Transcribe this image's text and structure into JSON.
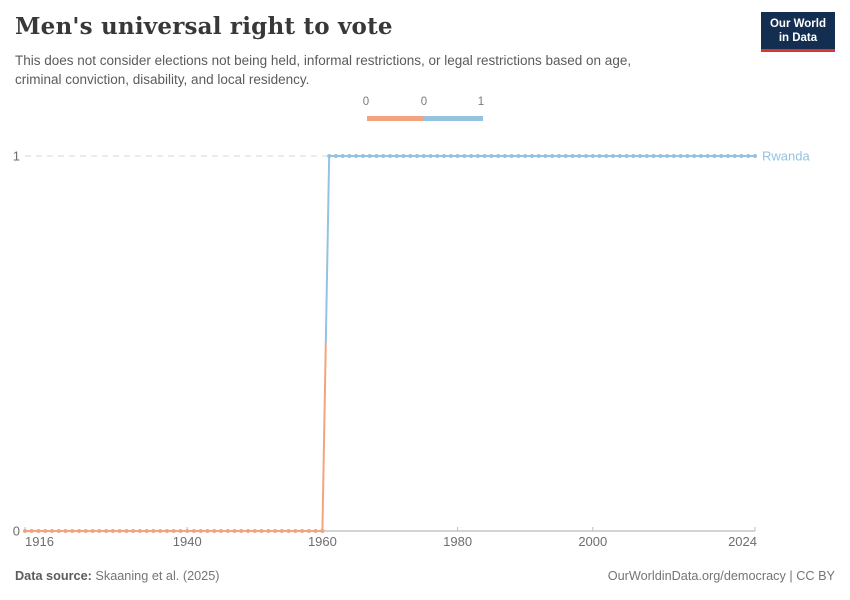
{
  "header": {
    "title": "Men's universal right to vote",
    "subtitle": "This does not consider elections not being held, informal restrictions, or legal restrictions based on age, criminal conviction, disability, and local residency.",
    "logo": {
      "line1": "Our World",
      "line2": "in Data",
      "bg_color": "#132E51",
      "accent_color": "#D6392C"
    }
  },
  "legend": {
    "tick_labels": [
      "0",
      "0",
      "1"
    ],
    "bins": [
      {
        "from_label": "0",
        "to_label": "0",
        "color": "#F3A47E"
      },
      {
        "from_label": "0",
        "to_label": "1",
        "color": "#93C3DE"
      }
    ]
  },
  "chart_data": {
    "type": "line",
    "subtype": "step",
    "title": "Men's universal right to vote",
    "entity": "Rwanda",
    "entity_color": "#93C3DE",
    "x_range": [
      1916,
      2024
    ],
    "x_ticks": [
      "1916",
      "1940",
      "1960",
      "1980",
      "2000",
      "2024"
    ],
    "y_ticks": [
      "0",
      "1"
    ],
    "ylim": [
      0,
      1
    ],
    "point_interval_years": 1,
    "series": [
      {
        "name": "0",
        "value": 0,
        "start_year": 1916,
        "end_year": 1960,
        "color": "#F3A47E"
      },
      {
        "name": "1",
        "value": 1,
        "start_year": 1961,
        "end_year": 2024,
        "color": "#93C3DE"
      }
    ],
    "grid": {
      "dashed_gridline_at": 1,
      "axis_line_at": 0
    }
  },
  "footer": {
    "source_label": "Data source:",
    "source_value": " Skaaning et al. (2025)",
    "license": "OurWorldinData.org/democracy | CC BY"
  },
  "colors": {
    "gridline": "#D7D7D7",
    "axis_line": "#A9A9A9",
    "tick_mark": "#BDBDBD",
    "axis_text": "#6E6E6E"
  }
}
